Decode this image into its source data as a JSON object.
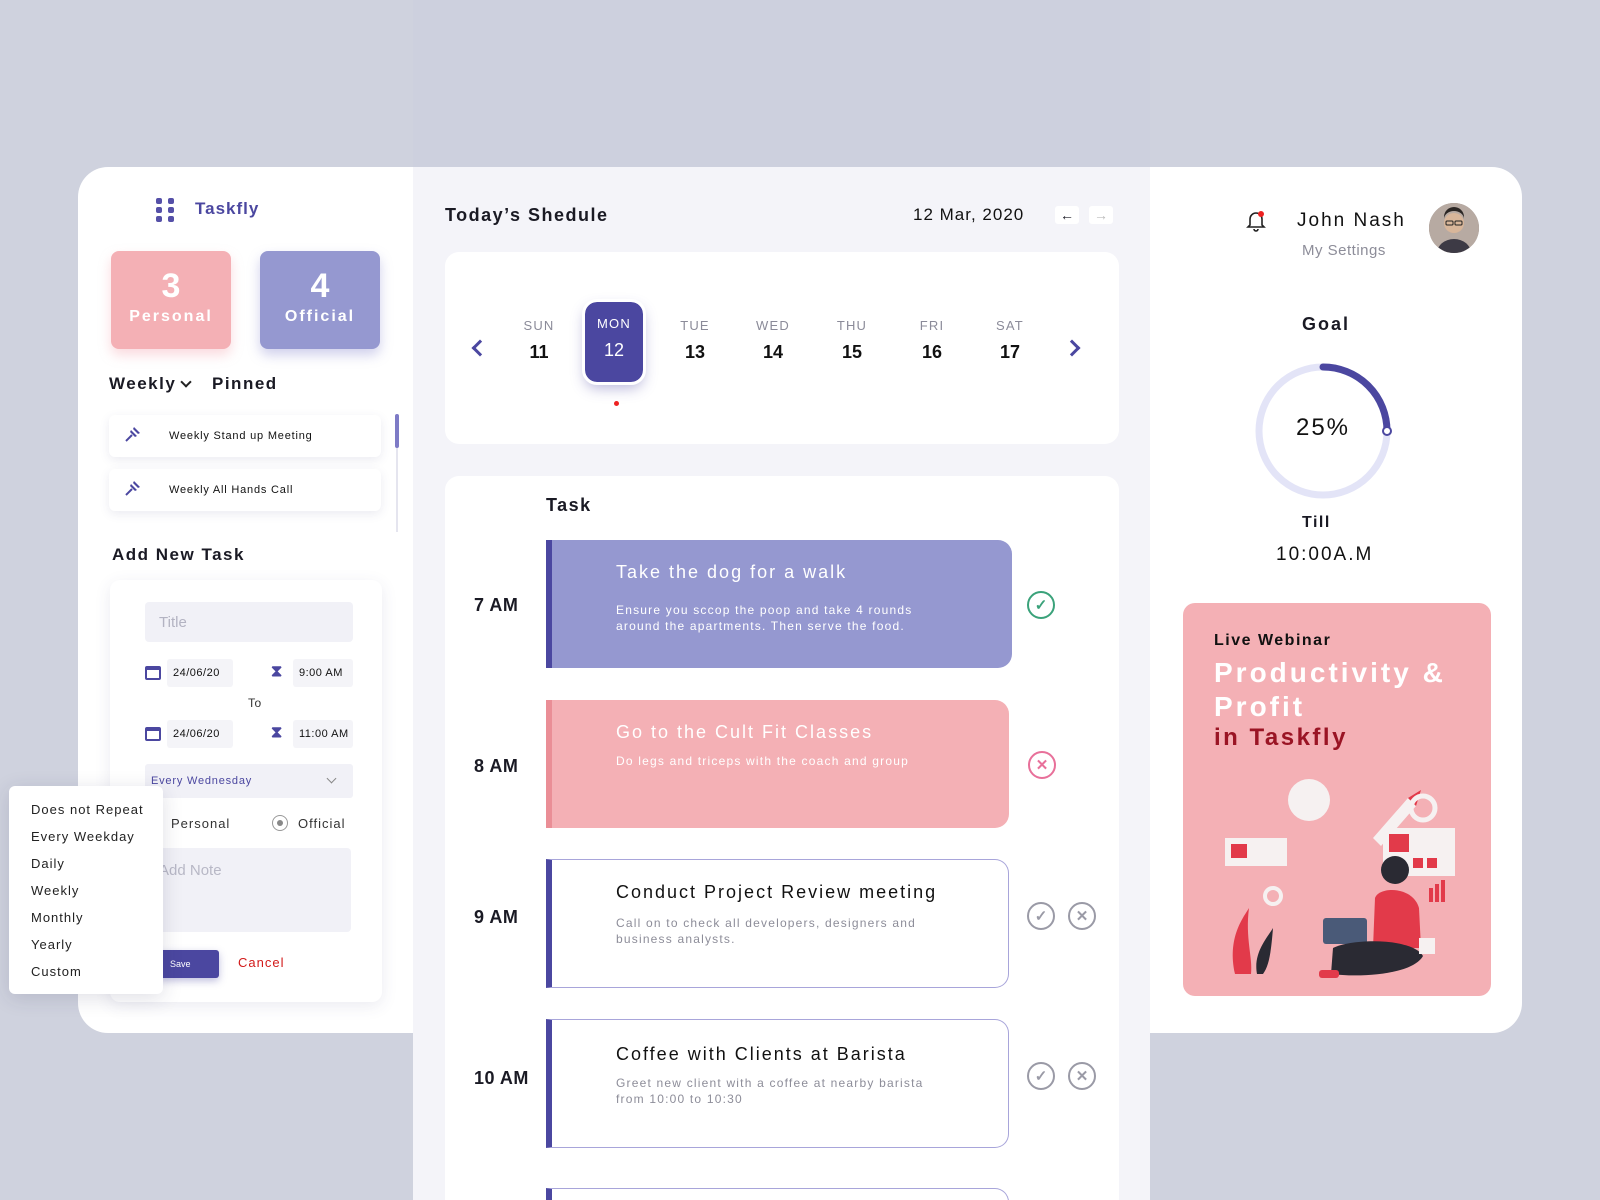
{
  "brand": {
    "name": "Taskfly"
  },
  "counts": [
    {
      "value": "3",
      "label": "Personal",
      "color": "#f4b0b5"
    },
    {
      "value": "4",
      "label": "Official",
      "color": "#9598d0"
    }
  ],
  "filters": {
    "weekly": "Weekly",
    "pinned": "Pinned"
  },
  "pinned_items": [
    {
      "label": "Weekly Stand up Meeting",
      "icon": "pin-icon"
    },
    {
      "label": "Weekly All Hands Call",
      "icon": "pin-icon"
    }
  ],
  "add_task": {
    "heading": "Add New Task",
    "title_placeholder": "Title",
    "start_date": "24/06/20",
    "start_time": "9:00 AM",
    "to_label": "To",
    "end_date": "24/06/20",
    "end_time": "11:00 AM",
    "repeat_value": "Every Wednesday",
    "radio_personal": "Personal",
    "radio_official": "Official",
    "note_placeholder": "Add Note",
    "save_label": "Save",
    "cancel_label": "Cancel"
  },
  "repeat_options": [
    "Does not Repeat",
    "Every Weekday",
    "Daily",
    "Weekly",
    "Monthly",
    "Yearly",
    "Custom"
  ],
  "schedule": {
    "title": "Today’s Shedule",
    "date": "12 Mar, 2020",
    "prev_arrow": "←",
    "next_arrow": "→",
    "days": [
      {
        "name": "SUN",
        "num": "11"
      },
      {
        "name": "MON",
        "num": "12",
        "active": true
      },
      {
        "name": "TUE",
        "num": "13"
      },
      {
        "name": "WED",
        "num": "14"
      },
      {
        "name": "THU",
        "num": "15"
      },
      {
        "name": "FRI",
        "num": "16"
      },
      {
        "name": "SAT",
        "num": "17"
      }
    ]
  },
  "tasks": {
    "heading": "Task",
    "items": [
      {
        "time": "7 AM",
        "title": "Take the dog for a walk",
        "desc": "Ensure you sccop the poop and take 4 rounds around the apartments. Then serve the food.",
        "style": "purple",
        "status": "done"
      },
      {
        "time": "8 AM",
        "title": "Go to the Cult Fit Classes",
        "desc": "Do legs and triceps with the coach and group",
        "style": "pink",
        "status": "cancelled"
      },
      {
        "time": "9 AM",
        "title": "Conduct Project Review meeting",
        "desc": "Call on to check all developers, designers and business analysts.",
        "style": "white",
        "status": "pending"
      },
      {
        "time": "10 AM",
        "title": "Coffee with Clients at Barista",
        "desc": "Greet new client with a coffee at nearby barista from 10:00 to 10:30",
        "style": "white",
        "status": "pending"
      }
    ]
  },
  "user": {
    "name": "John Nash",
    "settings": "My Settings"
  },
  "goal": {
    "label": "Goal",
    "percent": 25,
    "percent_text": "25%",
    "till_label": "Till",
    "till_time": "10:00A.M"
  },
  "promo": {
    "kicker": "Live Webinar",
    "headline": "Productivity & Profit",
    "sub": "in Taskfly"
  },
  "colors": {
    "accent": "#4b47a0",
    "purple": "#9598d0",
    "pink": "#f4b0b5",
    "done": "#3aa27a",
    "cancel": "#e8709a"
  }
}
